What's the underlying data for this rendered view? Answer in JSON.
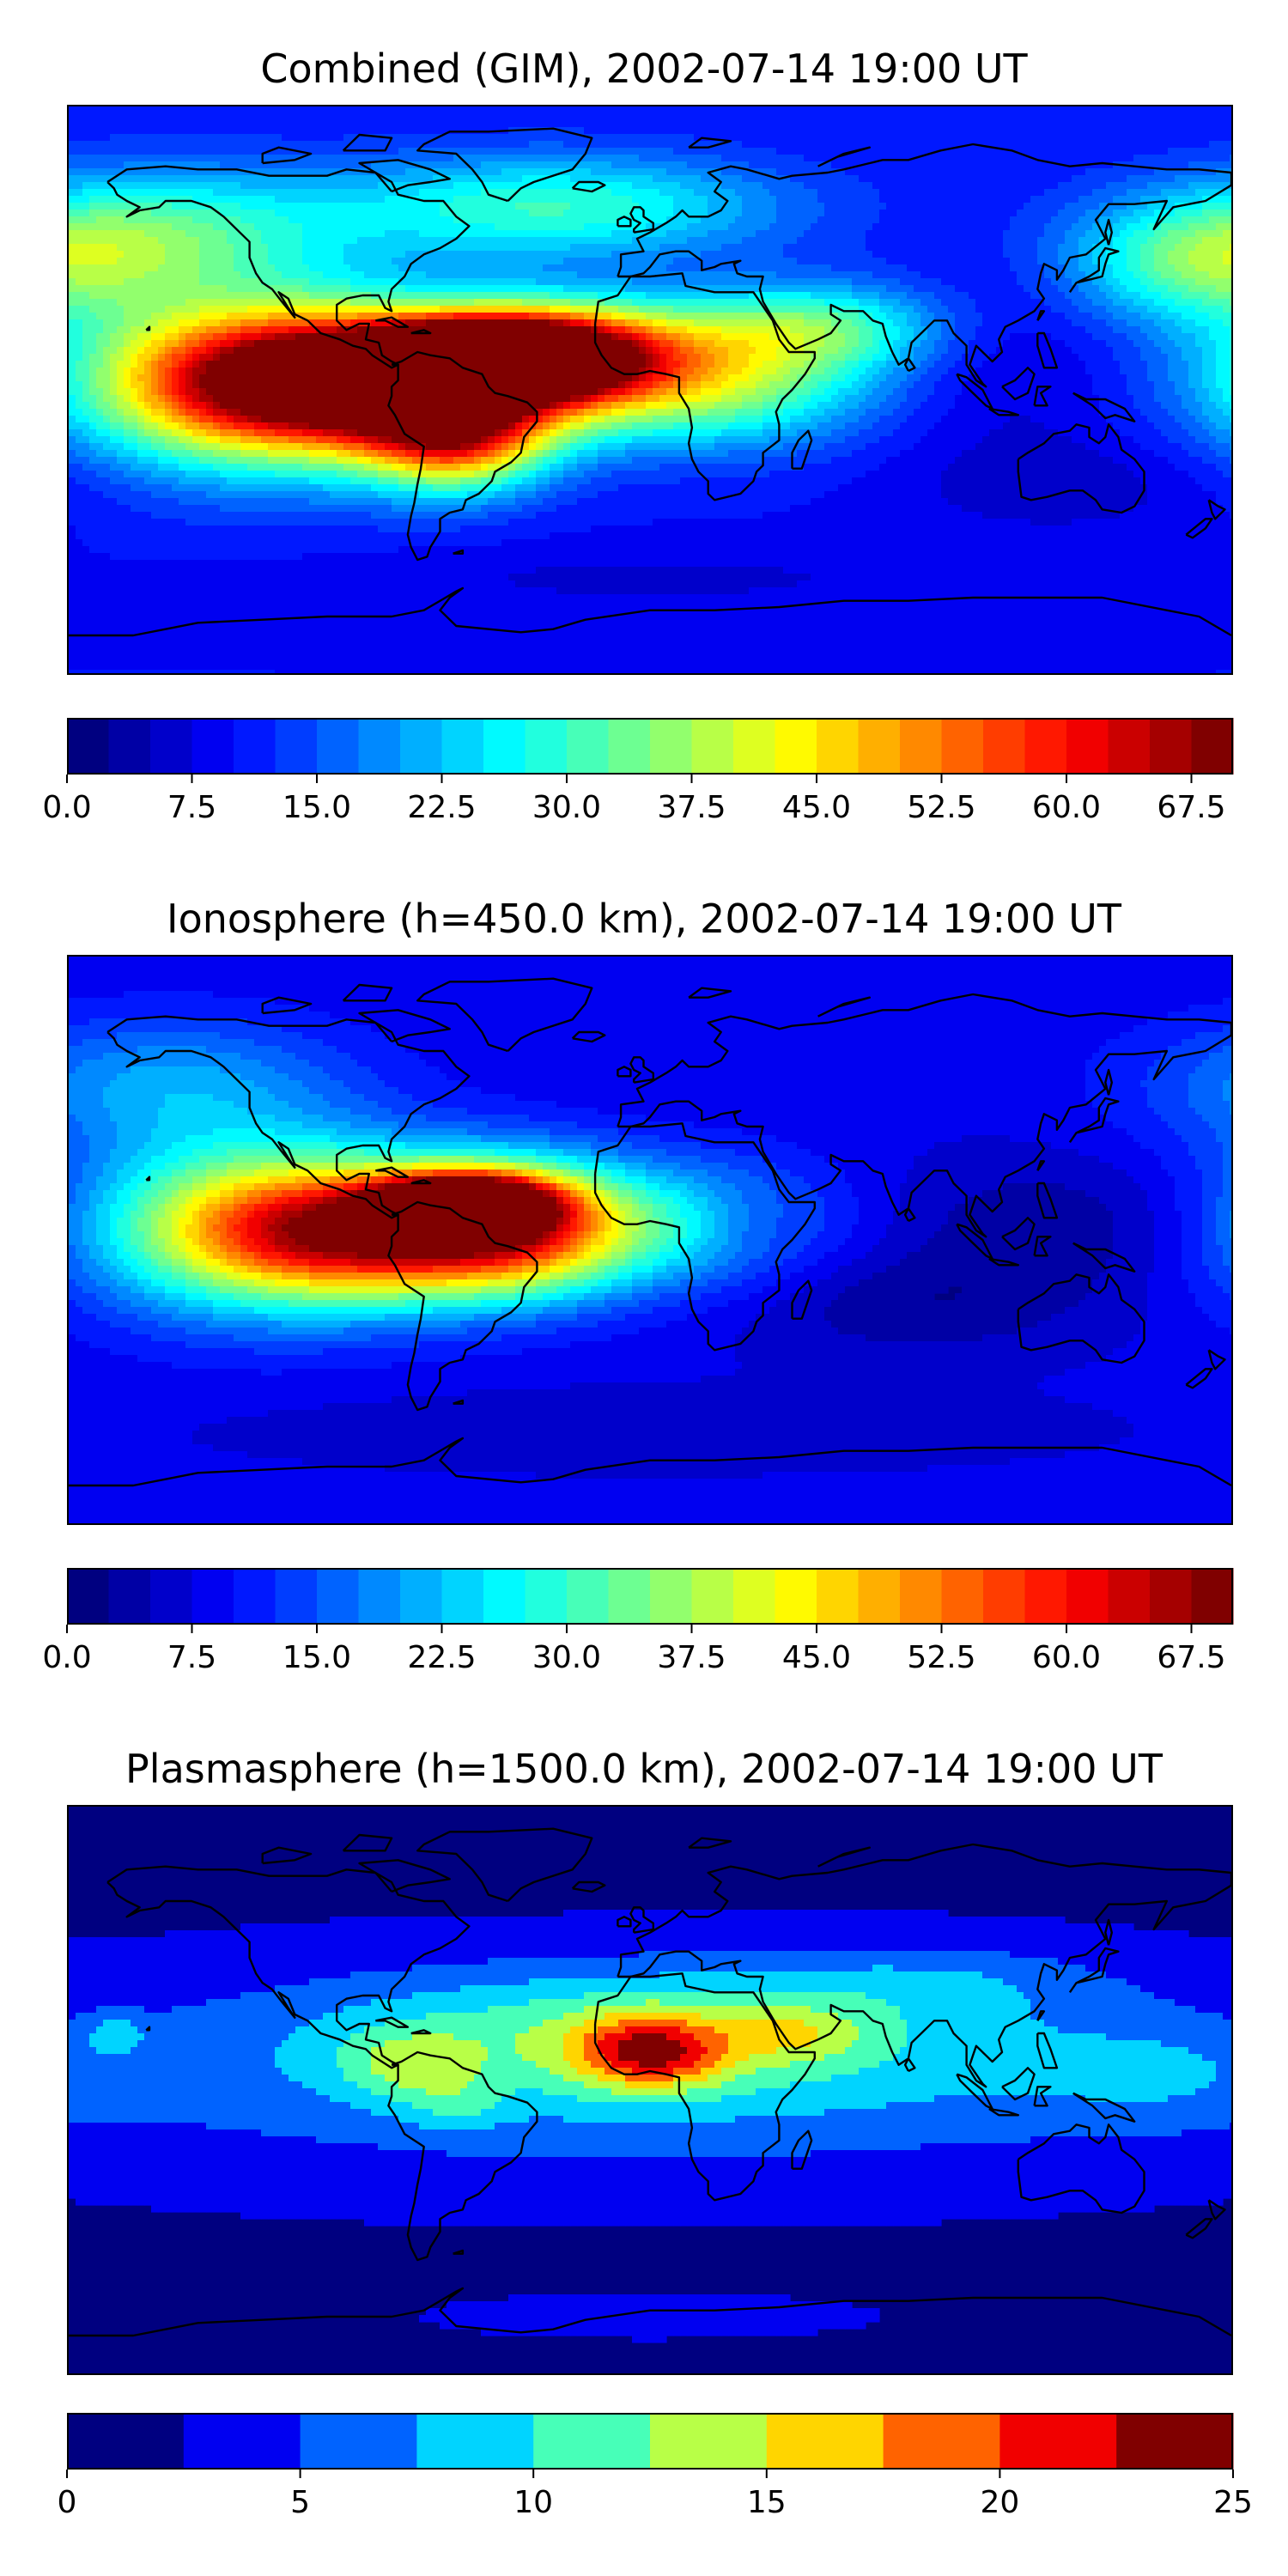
{
  "figure": {
    "background": "#ffffff"
  },
  "chart_data": [
    {
      "type": "heatmap",
      "title": "Combined (GIM), 2002-07-14 19:00 UT",
      "variable": "TEC",
      "colormap": "jet",
      "levels": {
        "min": 0.0,
        "max": 70.0,
        "step": 2.5
      },
      "colorbar_ticks": [
        "0.0",
        "7.5",
        "15.0",
        "22.5",
        "30.0",
        "37.5",
        "45.0",
        "52.5",
        "60.0",
        "67.5"
      ],
      "colorbar_tick_values": [
        0,
        7.5,
        15,
        22.5,
        30,
        37.5,
        45,
        52.5,
        60,
        67.5
      ],
      "field": {
        "background": 10,
        "features": [
          {
            "lon": -55,
            "lat": 10,
            "value": 64,
            "slon": 22,
            "slat": 7
          },
          {
            "lon": -85,
            "lat": 3,
            "value": 52,
            "slon": 45,
            "slat": 14
          },
          {
            "lon": -120,
            "lat": 2,
            "value": 36,
            "slon": 40,
            "slat": 20
          },
          {
            "lon": -30,
            "lat": 12,
            "value": 44,
            "slon": 28,
            "slat": 11
          },
          {
            "lon": -60,
            "lat": -15,
            "value": 36,
            "slon": 20,
            "slat": 12
          },
          {
            "lon": 20,
            "lat": 2,
            "value": 24,
            "slon": 35,
            "slat": 14
          },
          {
            "lon": 50,
            "lat": 20,
            "value": 20,
            "slon": 30,
            "slat": 10
          },
          {
            "lon": 170,
            "lat": 40,
            "value": 18,
            "slon": 30,
            "slat": 14
          },
          {
            "lon": -150,
            "lat": 50,
            "value": 18,
            "slon": 40,
            "slat": 15
          },
          {
            "lon": -30,
            "lat": 58,
            "value": 20,
            "slon": 50,
            "slat": 12
          },
          {
            "lon": 130,
            "lat": -30,
            "value": -4,
            "slon": 40,
            "slat": 12
          },
          {
            "lon": 0,
            "lat": -60,
            "value": -3,
            "slon": 80,
            "slat": 8
          },
          {
            "lon": 110,
            "lat": 10,
            "value": -4,
            "slon": 25,
            "slat": 20
          }
        ]
      }
    },
    {
      "type": "heatmap",
      "title": "Ionosphere  (h=450.0 km), 2002-07-14 19:00 UT",
      "variable": "TEC",
      "colormap": "jet",
      "levels": {
        "min": 0.0,
        "max": 70.0,
        "step": 2.5
      },
      "colorbar_ticks": [
        "0.0",
        "7.5",
        "15.0",
        "22.5",
        "30.0",
        "37.5",
        "45.0",
        "52.5",
        "60.0",
        "67.5"
      ],
      "colorbar_tick_values": [
        0,
        7.5,
        15,
        22.5,
        30,
        37.5,
        45,
        52.5,
        60,
        67.5
      ],
      "field": {
        "background": 8,
        "features": [
          {
            "lon": -58,
            "lat": 12,
            "value": 50,
            "slon": 18,
            "slat": 6
          },
          {
            "lon": -80,
            "lat": 2,
            "value": 42,
            "slon": 40,
            "slat": 14
          },
          {
            "lon": -120,
            "lat": 5,
            "value": 30,
            "slon": 40,
            "slat": 20
          },
          {
            "lon": -40,
            "lat": 5,
            "value": 30,
            "slon": 25,
            "slat": 15
          },
          {
            "lon": 15,
            "lat": 5,
            "value": 14,
            "slon": 30,
            "slat": 15
          },
          {
            "lon": 30,
            "lat": 5,
            "value": -4,
            "slon": 12,
            "slat": 8
          },
          {
            "lon": -150,
            "lat": 50,
            "value": 12,
            "slon": 40,
            "slat": 15
          },
          {
            "lon": 130,
            "lat": 5,
            "value": -5,
            "slon": 40,
            "slat": 15
          },
          {
            "lon": 80,
            "lat": -20,
            "value": -5,
            "slon": 40,
            "slat": 12
          },
          {
            "lon": 0,
            "lat": -60,
            "value": -3,
            "slon": 80,
            "slat": 8
          }
        ]
      }
    },
    {
      "type": "heatmap",
      "title": "Plasmasphere (h=1500.0 km), 2002-07-14 19:00 UT",
      "variable": "TEC",
      "colormap": "jet",
      "levels": {
        "min": 0,
        "max": 25,
        "step": 2.5
      },
      "colorbar_ticks": [
        "0",
        "5",
        "10",
        "15",
        "20",
        "25"
      ],
      "colorbar_tick_values": [
        0,
        5,
        10,
        15,
        20,
        25
      ],
      "field": {
        "background": 2,
        "features": [
          {
            "lon": 0,
            "lat": 5,
            "value": 6,
            "slon": 140,
            "slat": 22
          },
          {
            "lon": 0,
            "lat": 20,
            "value": 6,
            "slon": 70,
            "slat": 14
          },
          {
            "lon": 0,
            "lat": 12,
            "value": 12,
            "slon": 16,
            "slat": 8
          },
          {
            "lon": 45,
            "lat": 18,
            "value": 4,
            "slon": 15,
            "slat": 6
          },
          {
            "lon": -75,
            "lat": 8,
            "value": 5,
            "slon": 15,
            "slat": 8
          },
          {
            "lon": -60,
            "lat": -5,
            "value": 3,
            "slon": 10,
            "slat": 6
          },
          {
            "lon": -165,
            "lat": 18,
            "value": 4,
            "slon": 6,
            "slat": 4
          },
          {
            "lon": -30,
            "lat": 72,
            "value": -3,
            "slon": 30,
            "slat": 6
          },
          {
            "lon": 90,
            "lat": 35,
            "value": 3,
            "slon": 40,
            "slat": 8
          },
          {
            "lon": 160,
            "lat": 5,
            "value": 3,
            "slon": 30,
            "slat": 12
          },
          {
            "lon": 0,
            "lat": -72,
            "value": 1,
            "slon": 60,
            "slat": 6
          }
        ]
      }
    }
  ]
}
